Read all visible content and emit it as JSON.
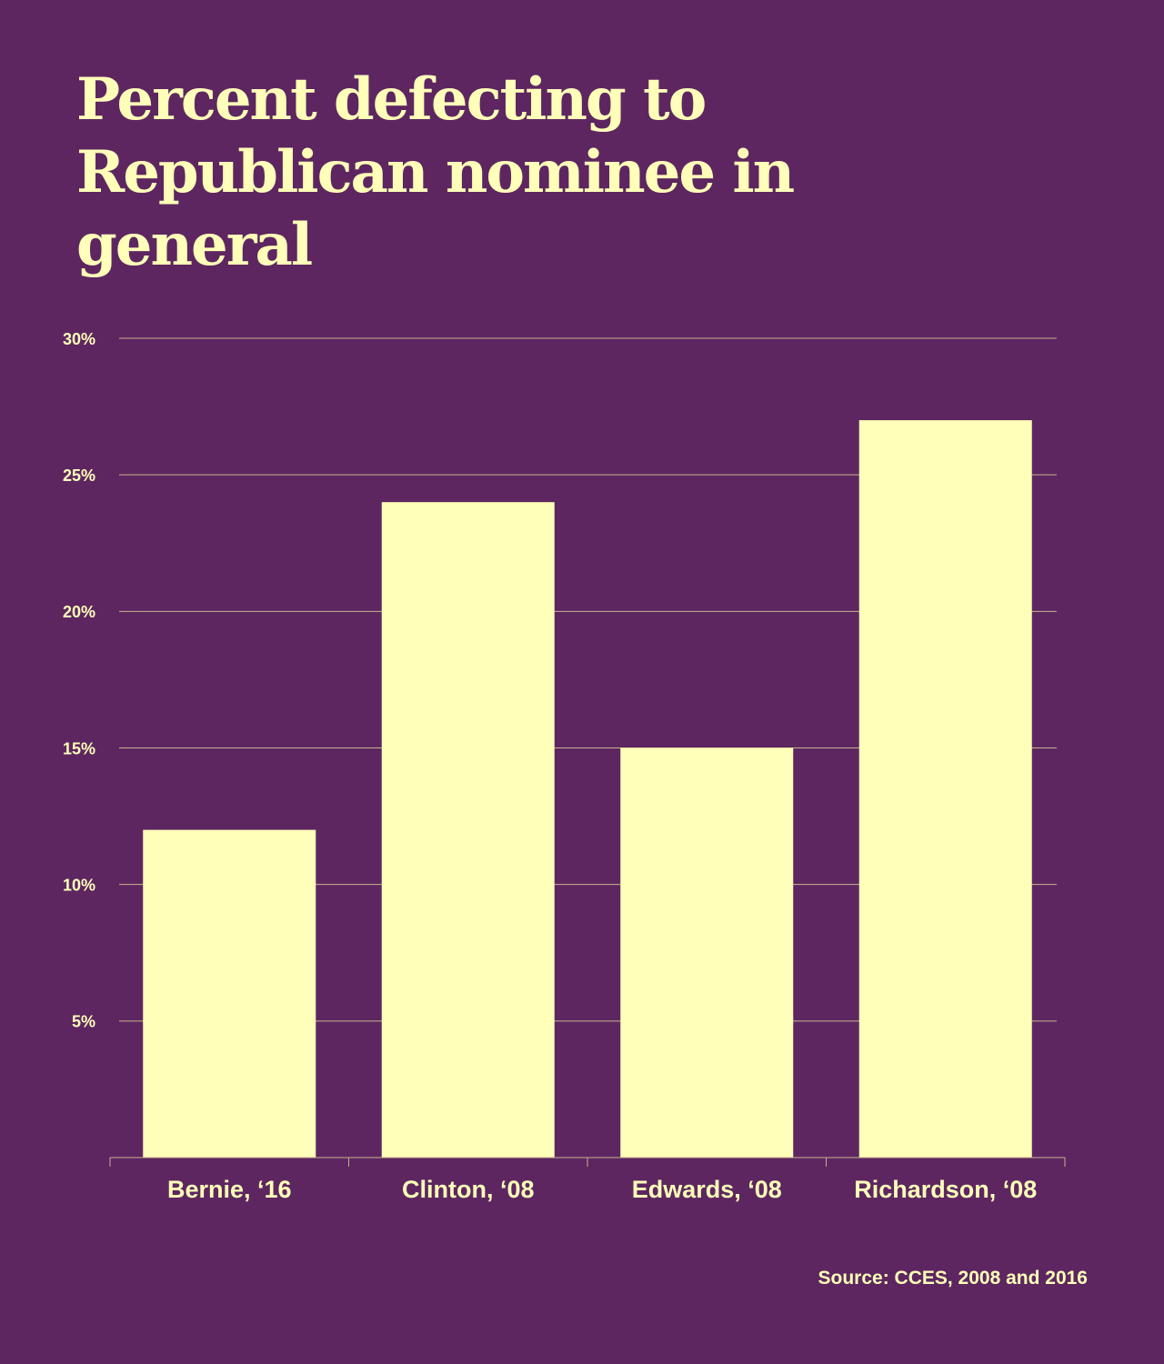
{
  "colors": {
    "background": "#5d2660",
    "accent": "#ffffb9",
    "gridline": "#c9b28f"
  },
  "chart_data": {
    "type": "bar",
    "title": [
      "Percent defecting to",
      "Republican nominee in general"
    ],
    "categories": [
      "Bernie, ‘16",
      "Clinton, ‘08",
      "Edwards, ‘08",
      "Richardson, ‘08"
    ],
    "values": [
      12,
      24,
      15,
      27
    ],
    "ylim": [
      0,
      30
    ],
    "yticks": [
      5,
      10,
      15,
      20,
      25,
      30
    ],
    "ytick_labels": [
      "5%",
      "10%",
      "15%",
      "20%",
      "25%",
      "30%"
    ],
    "grid": true,
    "xlabel": "",
    "ylabel": "",
    "source": "Source: CCES, 2008 and 2016"
  }
}
